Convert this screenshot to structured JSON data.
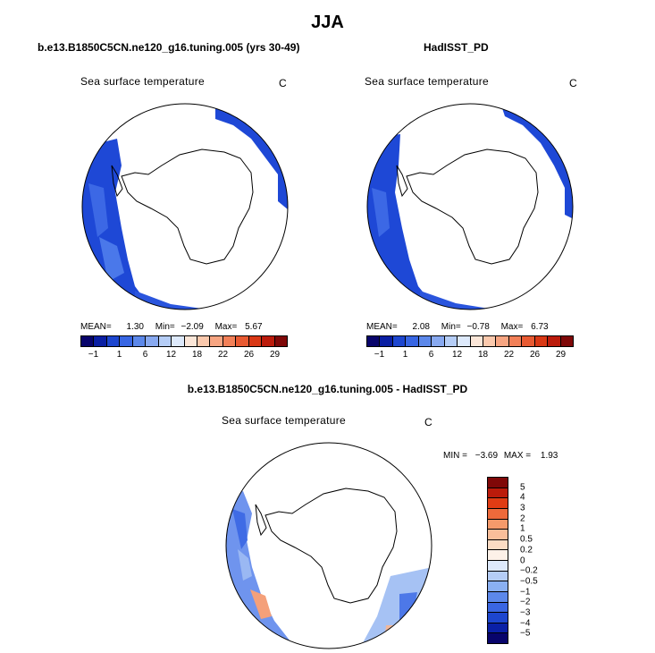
{
  "title": "JJA",
  "panels": [
    {
      "id": "model",
      "title": "b.e13.B1850C5CN.ne120_g16.tuning.005 (yrs 30-49)",
      "variable": "Sea surface temperature",
      "unit": "C",
      "stats": {
        "mean_label": "MEAN=",
        "mean": "1.30",
        "min_label": "Min=",
        "min": "−2.09",
        "max_label": "Max=",
        "max": "5.67"
      }
    },
    {
      "id": "obs",
      "title": "HadISST_PD",
      "variable": "Sea surface temperature",
      "unit": "C",
      "stats": {
        "mean_label": "MEAN=",
        "mean": "2.08",
        "min_label": "Min=",
        "min": "−0.78",
        "max_label": "Max=",
        "max": "6.73"
      }
    }
  ],
  "abs_colorbar": {
    "colors": [
      "#08046b",
      "#0a1fa3",
      "#1d46cf",
      "#3866e3",
      "#5c88ea",
      "#88a9f0",
      "#b5cdf6",
      "#dde9fb",
      "#fbe6d8",
      "#fbc9ad",
      "#f7a582",
      "#f28058",
      "#e85a32",
      "#d93815",
      "#bb1b0b",
      "#7f0808"
    ],
    "labels": [
      "−1",
      "1",
      "6",
      "12",
      "18",
      "22",
      "26",
      "29"
    ]
  },
  "diff_panel": {
    "title": "b.e13.B1850C5CN.ne120_g16.tuning.005 - HadISST_PD",
    "variable": "Sea surface temperature",
    "unit": "C",
    "stats": {
      "min_label": "MIN =",
      "min": "−3.69",
      "max_label": "MAX =",
      "max": "1.93"
    }
  },
  "diff_colorbar": {
    "colors": [
      "#7f0808",
      "#bb1b0b",
      "#e03c14",
      "#ee6a3b",
      "#f59a6b",
      "#f9be9a",
      "#fbdcc4",
      "#fdf1e8",
      "#dde9fb",
      "#b5cdf6",
      "#8ab0f2",
      "#5c88ea",
      "#3a66e2",
      "#1d46cf",
      "#0a20a6",
      "#08046b"
    ],
    "labels": [
      "5",
      "4",
      "3",
      "2",
      "1",
      "0.5",
      "0.2",
      "0",
      "−0.2",
      "−0.5",
      "−1",
      "−2",
      "−3",
      "−4",
      "−5"
    ]
  }
}
